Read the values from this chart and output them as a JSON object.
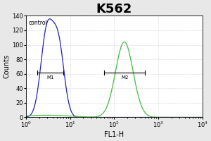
{
  "title": "K562",
  "xlabel": "FL1-H",
  "ylabel": "Counts",
  "ylim": [
    0,
    140
  ],
  "yticks": [
    0,
    20,
    40,
    60,
    80,
    100,
    120,
    140
  ],
  "xlim_log": [
    1.0,
    10000.0
  ],
  "control_label": "control",
  "control_color": "#2222bb",
  "sample_color": "#44bb44",
  "bg_color": "#e8e8e8",
  "plot_bg": "#ffffff",
  "control_peak_x": 3.0,
  "control_peak_y": 118,
  "control_peak2_x": 5.5,
  "control_peak2_y": 95,
  "sample_peak_x": 170,
  "sample_peak_y": 104,
  "M1_x1": 1.8,
  "M1_x2": 7.0,
  "M1_y": 62,
  "M2_x1": 60,
  "M2_x2": 500,
  "M2_y": 62,
  "title_fontsize": 13,
  "label_fontsize": 7,
  "tick_fontsize": 6
}
